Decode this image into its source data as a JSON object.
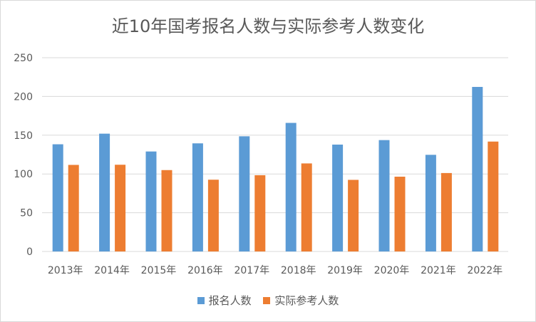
{
  "chart_data": {
    "type": "bar",
    "title": "近10年国考报名人数与实际参考人数变化",
    "categories": [
      "2013年",
      "2014年",
      "2015年",
      "2016年",
      "2017年",
      "2018年",
      "2019年",
      "2020年",
      "2021年",
      "2022年"
    ],
    "series": [
      {
        "name": "报名人数",
        "color": "#5b9bd5",
        "values": [
          138.3,
          152.0,
          129.0,
          139.5,
          148.6,
          165.9,
          137.9,
          143.7,
          124.7,
          212.3
        ]
      },
      {
        "name": "实际参考人数",
        "color": "#ed7d31",
        "values": [
          111.7,
          111.9,
          105.0,
          92.6,
          98.4,
          113.6,
          92.4,
          96.5,
          101.2,
          141.8
        ]
      }
    ],
    "xlabel": "",
    "ylabel": "",
    "ylim": [
      0,
      250
    ],
    "yticks": [
      0,
      50,
      100,
      150,
      200,
      250
    ],
    "grid": true,
    "legend": "bottom"
  }
}
